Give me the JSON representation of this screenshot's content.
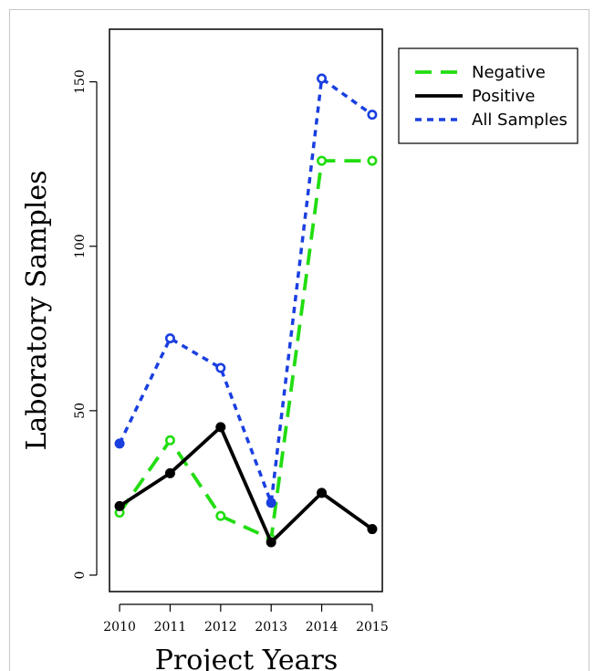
{
  "chart_data": {
    "type": "line",
    "xlabel": "Project Years",
    "ylabel": "Laboratory Samples",
    "x": [
      2010,
      2011,
      2012,
      2013,
      2014,
      2015
    ],
    "x_tick_labels": [
      "2010",
      "2011",
      "2012",
      "2013",
      "2014",
      "2015"
    ],
    "xlim": [
      2009.8,
      2015.2
    ],
    "ylim": [
      -5,
      166
    ],
    "y_ticks": [
      0,
      50,
      100,
      150
    ],
    "y_tick_labels": [
      "0",
      "50",
      "100",
      "150"
    ],
    "grid": false,
    "legend_position": "top-right",
    "series": [
      {
        "name": "Negative",
        "values": [
          19,
          41,
          18,
          11,
          126,
          126
        ],
        "color": "#22dd11",
        "line_style": "long-dash",
        "marker": "open-circle"
      },
      {
        "name": "Positive",
        "values": [
          21,
          31,
          45,
          10,
          25,
          14
        ],
        "color": "#000000",
        "line_style": "solid",
        "marker": "filled-circle"
      },
      {
        "name": "All Samples",
        "values": [
          40,
          72,
          63,
          22,
          151,
          140
        ],
        "color": "#1a3fe0",
        "line_style": "dotted",
        "marker": "mixed-circle"
      }
    ]
  }
}
